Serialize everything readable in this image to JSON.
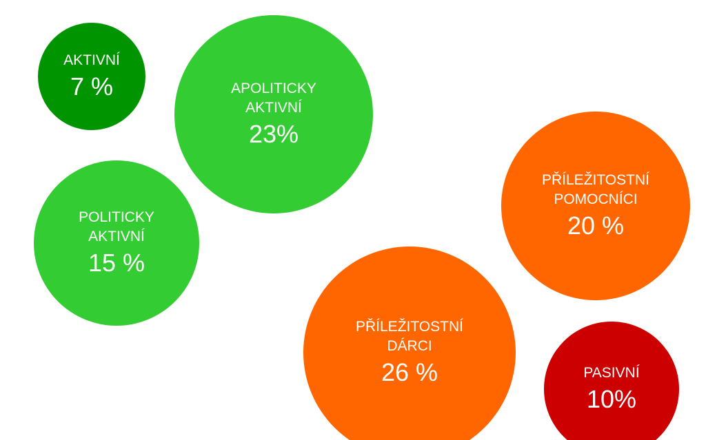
{
  "chart_data": {
    "type": "bubble",
    "title": "",
    "series": [
      {
        "label_lines": [
          "AKTIVNÍ"
        ],
        "value_text": "7 %",
        "value": 7,
        "color": "#009400"
      },
      {
        "label_lines": [
          "APOLITICKY",
          "AKTIVNÍ"
        ],
        "value_text": "23%",
        "value": 23,
        "color": "#33cc33"
      },
      {
        "label_lines": [
          "POLITICKY",
          "AKTIVNÍ"
        ],
        "value_text": "15 %",
        "value": 15,
        "color": "#33cc33"
      },
      {
        "label_lines": [
          "PŘÍLEŽITOSTNÍ",
          "POMOCNÍCI"
        ],
        "value_text": "20 %",
        "value": 20,
        "color": "#ff6600"
      },
      {
        "label_lines": [
          "PŘÍLEŽITOSTNÍ",
          "DÁRCI"
        ],
        "value_text": "26 %",
        "value": 26,
        "color": "#ff6600"
      },
      {
        "label_lines": [
          "PASIVNÍ"
        ],
        "value_text": "10%",
        "value": 10,
        "color": "#cc0000"
      }
    ]
  }
}
